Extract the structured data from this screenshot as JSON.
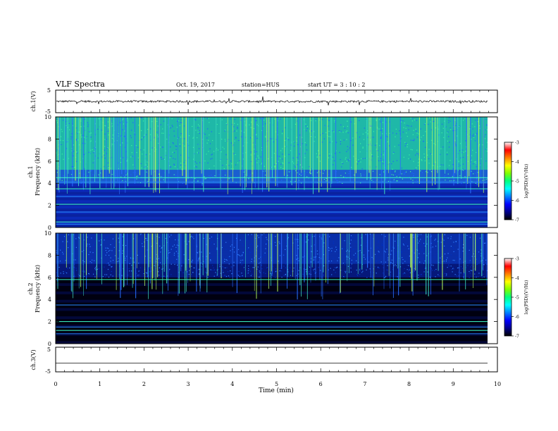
{
  "header": {
    "title": "VLF Spectra",
    "date": "Oct. 19, 2017",
    "station": "station=HUS",
    "start": "start  UT  =   3  : 10 : 2"
  },
  "chart_data": [
    {
      "type": "line",
      "panel": "waveform-ch1",
      "ylabel": "ch.1(V)",
      "ylim": [
        -5,
        5
      ],
      "yticks": [
        "5",
        "-5"
      ],
      "baseline": 0,
      "series_color": "#000000"
    },
    {
      "type": "heatmap",
      "panel": "spectrogram-ch1",
      "ylabel": "ch.1\nFrequency (kHz)",
      "ylim": [
        0,
        10
      ],
      "yticks": [
        "0",
        "2",
        "4",
        "6",
        "8",
        "10"
      ],
      "xlim": [
        0,
        10
      ],
      "colorbar": {
        "label": "log(PSD)(V²/Hz)",
        "ticks": [
          "-3",
          "-4",
          "-5",
          "-6",
          "-7"
        ],
        "range": [
          -7,
          -3
        ]
      },
      "hiss_band_khz": [
        4,
        10
      ],
      "bright_lines_khz": [
        0.3,
        0.5,
        1.4,
        2.1,
        2.8,
        3.5,
        4.1,
        4.5
      ]
    },
    {
      "type": "heatmap",
      "panel": "spectrogram-ch2",
      "ylabel": "ch.2\nFrequency (kHz)",
      "ylim": [
        0,
        10
      ],
      "yticks": [
        "0",
        "2",
        "4",
        "6",
        "8",
        "10"
      ],
      "xlim": [
        0,
        10
      ],
      "colorbar": {
        "label": "log(PSD)(V²/Hz)",
        "ticks": [
          "-3",
          "-4",
          "-5",
          "-6",
          "-7"
        ],
        "range": [
          -7,
          -3
        ]
      },
      "hiss_band_khz": [
        6,
        10
      ],
      "bright_lines_khz": [
        0.9,
        1.2,
        1.5,
        2.0,
        3.5,
        5.8
      ]
    },
    {
      "type": "line",
      "panel": "waveform-ch3",
      "ylabel": "ch.3(V)",
      "ylim": [
        -5,
        5
      ],
      "yticks": [
        "5",
        "-5"
      ],
      "baseline": -1.5,
      "series_color": "#000000"
    }
  ],
  "xaxis": {
    "label": "Time (min)",
    "ticks": [
      "0",
      "1",
      "2",
      "3",
      "4",
      "5",
      "6",
      "7",
      "8",
      "9",
      "10"
    ],
    "xlim": [
      0,
      10
    ]
  },
  "colors": {
    "spec_low": "#000000",
    "spec_mid": "#0000c8",
    "spec_high": "#00ff80",
    "colormap": [
      "#000000",
      "#00008b",
      "#0000ff",
      "#0080ff",
      "#00ffff",
      "#00ff80",
      "#80ff00",
      "#ffff00",
      "#ff8000",
      "#ff0000",
      "#ffffff"
    ]
  }
}
